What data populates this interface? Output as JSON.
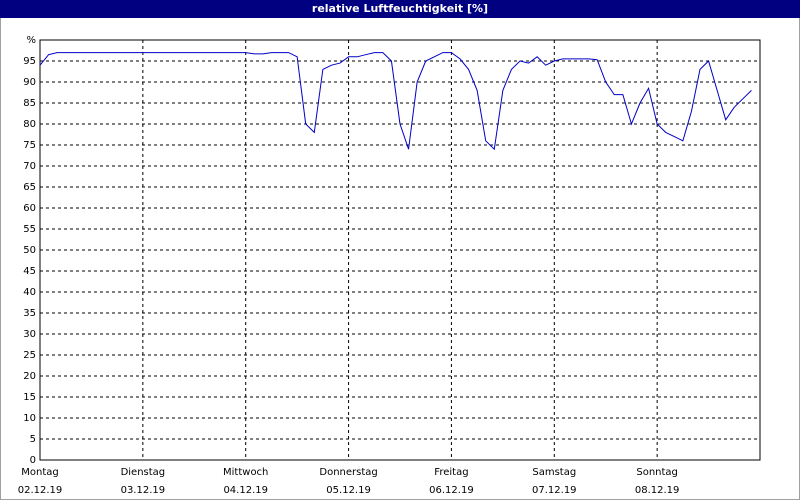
{
  "chart_data": {
    "type": "line",
    "title": "relative Luftfeuchtigkeit [%]",
    "categories": [
      "Montag",
      null,
      null,
      null,
      null,
      null,
      null,
      null,
      null,
      null,
      null,
      null,
      "Dienstag",
      null,
      null,
      null,
      null,
      null,
      null,
      null,
      null,
      null,
      null,
      null,
      "Mittwoch",
      null,
      null,
      null,
      null,
      null,
      null,
      null,
      null,
      null,
      null,
      null,
      "Donnerstag",
      null,
      null,
      null,
      null,
      null,
      null,
      null,
      null,
      null,
      null,
      null,
      "Freitag",
      null,
      null,
      null,
      null,
      null,
      null,
      null,
      null,
      null,
      null,
      null,
      "Samstag",
      null,
      null,
      null,
      null,
      null,
      null,
      null,
      null,
      null,
      null,
      null,
      "Sonntag",
      null,
      null,
      null,
      null,
      null,
      null,
      null,
      null,
      null,
      null,
      null
    ],
    "dates": [
      "02.12.19",
      null,
      null,
      null,
      null,
      null,
      null,
      null,
      null,
      null,
      null,
      null,
      "03.12.19",
      null,
      null,
      null,
      null,
      null,
      null,
      null,
      null,
      null,
      null,
      null,
      "04.12.19",
      null,
      null,
      null,
      null,
      null,
      null,
      null,
      null,
      null,
      null,
      null,
      "05.12.19",
      null,
      null,
      null,
      null,
      null,
      null,
      null,
      null,
      null,
      null,
      null,
      "06.12.19",
      null,
      null,
      null,
      null,
      null,
      null,
      null,
      null,
      null,
      null,
      null,
      "07.12.19",
      null,
      null,
      null,
      null,
      null,
      null,
      null,
      null,
      null,
      null,
      null,
      "08.12.19",
      null,
      null,
      null,
      null,
      null,
      null,
      null,
      null,
      null,
      null,
      null
    ],
    "series": [
      {
        "color": "#0000c8",
        "values": [
          94,
          96.5,
          97,
          97,
          97,
          97,
          97,
          97,
          97,
          97,
          97,
          97,
          97,
          97,
          97,
          97,
          97,
          97,
          97,
          97,
          97,
          97,
          97,
          97,
          97,
          96.7,
          96.7,
          97,
          97,
          97,
          96,
          80,
          78,
          93,
          94,
          94.5,
          96,
          96,
          96.5,
          97,
          97,
          95,
          80,
          74,
          90,
          95,
          96,
          97,
          97,
          95.5,
          93,
          88,
          76,
          74,
          88,
          93,
          95,
          94.5,
          96,
          94,
          95,
          95.5,
          95.5,
          95.5,
          95.5,
          95.3,
          90,
          87,
          87,
          80,
          85,
          88.5,
          80,
          78,
          77,
          76,
          83,
          93,
          95,
          88,
          81,
          84,
          86,
          88
        ]
      }
    ],
    "ylim": [
      0,
      100
    ],
    "yticks": [
      0,
      5,
      10,
      15,
      20,
      25,
      30,
      35,
      40,
      45,
      50,
      55,
      60,
      65,
      70,
      75,
      80,
      85,
      90,
      95,
      {
        "value": 100,
        "label": "%"
      }
    ],
    "grid": true
  }
}
